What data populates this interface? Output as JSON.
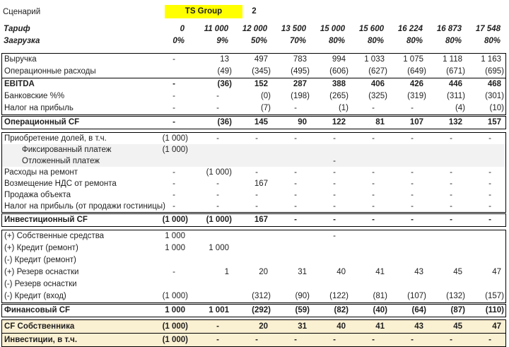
{
  "colors": {
    "scenario_highlight": "#FFFF00",
    "owner_block_bg": "#FAF0D2",
    "shaded_row_bg": "#F2F2F2",
    "text": "#1F1F1F",
    "border": "#000000"
  },
  "scenario": {
    "label": "Сценарий",
    "value": "TS Group",
    "number": "2"
  },
  "header": {
    "tariff": {
      "label": "Тариф",
      "values": [
        "0",
        "11 000",
        "12 000",
        "13 500",
        "15 000",
        "15 600",
        "16 224",
        "16 873",
        "17 548"
      ]
    },
    "load": {
      "label": "Загрузка",
      "values": [
        "0%",
        "9%",
        "50%",
        "70%",
        "80%",
        "80%",
        "80%",
        "80%",
        "80%"
      ]
    }
  },
  "table": {
    "sections": [
      {
        "id": "operating",
        "rows": [
          {
            "label": "Выручка",
            "values": [
              "-",
              "13",
              "497",
              "783",
              "994",
              "1 033",
              "1 075",
              "1 118",
              "1 163"
            ]
          },
          {
            "label": "Операционные расходы",
            "values": [
              "",
              "(49)",
              "(345)",
              "(495)",
              "(606)",
              "(627)",
              "(649)",
              "(671)",
              "(695)"
            ]
          },
          {
            "label": "EBITDA",
            "bold": true,
            "border_top": true,
            "values": [
              "-",
              "(36)",
              "152",
              "287",
              "388",
              "406",
              "426",
              "446",
              "468"
            ]
          },
          {
            "label": "Банковские %%",
            "values": [
              "-",
              "-",
              "(0)",
              "(198)",
              "(265)",
              "(325)",
              "(319)",
              "(311)",
              "(301)"
            ]
          },
          {
            "label": "Налог на прибыль",
            "values": [
              "-",
              "-",
              "(7)",
              "-",
              "(1)",
              "-",
              "-",
              "(4)",
              "(10)"
            ]
          }
        ],
        "total": {
          "label": "Операционный CF",
          "values": [
            "-",
            "(36)",
            "145",
            "90",
            "122",
            "81",
            "107",
            "132",
            "157"
          ]
        }
      },
      {
        "id": "investing",
        "rows": [
          {
            "label": "Приобретение долей, в т.ч.",
            "values": [
              "(1 000)",
              "-",
              "-",
              "-",
              "-",
              "-",
              "-",
              "-",
              "-"
            ]
          },
          {
            "label": "Фиксированный платеж",
            "indent": true,
            "shaded": true,
            "values": [
              "(1 000)",
              "",
              "",
              "",
              "",
              "",
              "",
              "",
              ""
            ]
          },
          {
            "label": "Отложенный платеж",
            "indent": true,
            "shaded": true,
            "values": [
              "",
              "",
              "",
              "",
              "-",
              "",
              "",
              "",
              ""
            ]
          },
          {
            "label": "Расходы на ремонт",
            "values": [
              "-",
              "(1 000)",
              "-",
              "-",
              "-",
              "-",
              "-",
              "-",
              "-"
            ]
          },
          {
            "label": "Возмещение НДС от ремонта",
            "values": [
              "-",
              "-",
              "167",
              "-",
              "-",
              "-",
              "-",
              "-",
              "-"
            ]
          },
          {
            "label": "Продажа объекта",
            "values": [
              "-",
              "-",
              "-",
              "-",
              "-",
              "-",
              "-",
              "-",
              "-"
            ]
          },
          {
            "label": "Налог на прибыль (от продажи гостиницы)",
            "values": [
              "-",
              "-",
              "-",
              "-",
              "-",
              "-",
              "-",
              "-",
              "-"
            ]
          }
        ],
        "total": {
          "label": "Инвестиционный CF",
          "values": [
            "(1 000)",
            "(1 000)",
            "167",
            "-",
            "-",
            "-",
            "-",
            "-",
            "-"
          ]
        }
      },
      {
        "id": "financing",
        "rows": [
          {
            "label": "(+) Собственные средства",
            "values": [
              "1 000",
              "",
              "",
              "",
              "-",
              "",
              "",
              "",
              ""
            ]
          },
          {
            "label": "(+) Кредит (ремонт)",
            "values": [
              "1 000",
              "1 000",
              "",
              "",
              "",
              "",
              "",
              "",
              ""
            ]
          },
          {
            "label": "(-) Кредит (ремонт)",
            "values": [
              "",
              "",
              "",
              "",
              "",
              "",
              "",
              "",
              ""
            ]
          },
          {
            "label": "(+) Резерв оснастки",
            "values": [
              "-",
              "1",
              "20",
              "31",
              "40",
              "41",
              "43",
              "45",
              "47"
            ]
          },
          {
            "label": "(-) Резерв оснастки",
            "values": [
              "",
              "",
              "",
              "",
              "",
              "",
              "",
              "",
              ""
            ]
          },
          {
            "label": "(-) Кредит (вход)",
            "values": [
              "(1 000)",
              "",
              "(312)",
              "(90)",
              "(122)",
              "(81)",
              "(107)",
              "(132)",
              "(157)"
            ]
          }
        ],
        "total": {
          "label": "Финансовый CF",
          "values": [
            "1 000",
            "1 001",
            "(292)",
            "(59)",
            "(82)",
            "(40)",
            "(64)",
            "(87)",
            "(110)"
          ]
        }
      },
      {
        "id": "owner",
        "highlight": true,
        "rows": [
          {
            "label": "CF Собственника",
            "bold": true,
            "values": [
              "(1 000)",
              "-",
              "20",
              "31",
              "40",
              "41",
              "43",
              "45",
              "47"
            ]
          },
          {
            "label": "Инвестиции, в т.ч.",
            "bold": true,
            "values": [
              "(1 000)",
              "-",
              "-",
              "-",
              "-",
              "-",
              "-",
              "-",
              "-"
            ]
          }
        ]
      }
    ]
  }
}
